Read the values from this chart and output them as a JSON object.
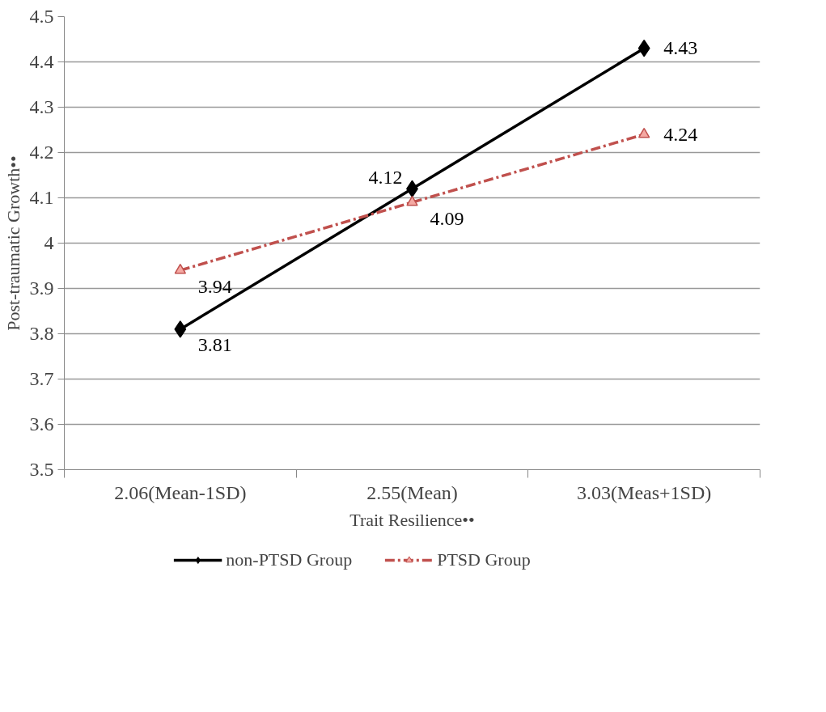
{
  "chart_data": {
    "type": "line",
    "xlabel": "Trait Resilience••",
    "ylabel": "Post-traumatic Growth••",
    "categories": [
      "2.06(Mean-1SD)",
      "2.55(Mean)",
      "3.03(Meas+1SD)"
    ],
    "series": [
      {
        "name": "non-PTSD Group",
        "color": "#000000",
        "marker": "diamond",
        "line_style": "solid",
        "values": [
          3.81,
          4.12,
          4.43
        ]
      },
      {
        "name": "PTSD Group",
        "color": "#c0504d",
        "marker": "triangle",
        "line_style": "dashdot",
        "values": [
          3.94,
          4.09,
          4.24
        ]
      }
    ],
    "ylim": [
      3.5,
      4.5
    ],
    "yticks": [
      3.5,
      3.6,
      3.7,
      3.8,
      3.9,
      4,
      4.1,
      4.2,
      4.3,
      4.4,
      4.5
    ],
    "grid": "y",
    "legend": "bottom",
    "data_labels": true
  }
}
